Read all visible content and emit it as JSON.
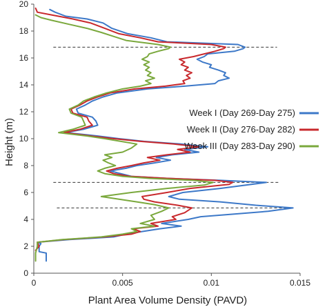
{
  "chart_data": {
    "type": "line",
    "orientation": "vertical-profile",
    "title": "",
    "xlabel": "Plant Area Volume Density (PAVD)",
    "ylabel": "Height (m)",
    "xlim": [
      0,
      0.015
    ],
    "ylim": [
      0,
      20
    ],
    "xticks": [
      0,
      0.005,
      0.01,
      0.015
    ],
    "xtick_labels": [
      "0",
      "0.005",
      "0.01",
      "0.015"
    ],
    "yticks": [
      0,
      2,
      4,
      6,
      8,
      10,
      12,
      14,
      16,
      18,
      20
    ],
    "ytick_labels": [
      "0",
      "2",
      "4",
      "6",
      "8",
      "10",
      "12",
      "14",
      "16",
      "18",
      "20"
    ],
    "grid": false,
    "legend_position": "right",
    "series": [
      {
        "name": "Week I (Day 269-Day 275)",
        "color": "#3c78c8",
        "points": [
          [
            0.0007,
            0.9
          ],
          [
            0.0007,
            1.5
          ],
          [
            0.0003,
            1.6
          ],
          [
            0.0003,
            2.0
          ],
          [
            0.0004,
            2.2
          ],
          [
            0.0002,
            2.3
          ],
          [
            0.002,
            2.5
          ],
          [
            0.0045,
            2.7
          ],
          [
            0.0052,
            2.9
          ],
          [
            0.0061,
            3.1
          ],
          [
            0.0071,
            3.3
          ],
          [
            0.0083,
            3.5
          ],
          [
            0.0072,
            3.7
          ],
          [
            0.0087,
            4.0
          ],
          [
            0.0094,
            4.2
          ],
          [
            0.0113,
            4.4
          ],
          [
            0.0132,
            4.6
          ],
          [
            0.0146,
            4.85
          ],
          [
            0.0125,
            5.05
          ],
          [
            0.0105,
            5.3
          ],
          [
            0.0082,
            5.5
          ],
          [
            0.0076,
            5.7
          ],
          [
            0.0084,
            6.0
          ],
          [
            0.0105,
            6.3
          ],
          [
            0.0131,
            6.75
          ],
          [
            0.0105,
            6.9
          ],
          [
            0.0075,
            7.05
          ],
          [
            0.0055,
            7.2
          ],
          [
            0.0049,
            7.4
          ],
          [
            0.0043,
            7.6
          ],
          [
            0.0052,
            7.8
          ],
          [
            0.0058,
            8.0
          ],
          [
            0.0068,
            8.2
          ],
          [
            0.0077,
            8.4
          ],
          [
            0.0069,
            8.6
          ],
          [
            0.0078,
            8.8
          ],
          [
            0.0093,
            9.0
          ],
          [
            0.0085,
            9.2
          ],
          [
            0.0098,
            9.4
          ],
          [
            0.0083,
            9.6
          ],
          [
            0.0062,
            9.8
          ],
          [
            0.0048,
            10.0
          ],
          [
            0.0036,
            10.2
          ],
          [
            0.0018,
            10.45
          ],
          [
            0.0028,
            10.7
          ],
          [
            0.0036,
            11.0
          ],
          [
            0.0035,
            11.3
          ],
          [
            0.0033,
            11.6
          ],
          [
            0.0025,
            11.9
          ],
          [
            0.0024,
            12.2
          ],
          [
            0.0029,
            12.5
          ],
          [
            0.0033,
            12.8
          ],
          [
            0.0039,
            13.1
          ],
          [
            0.0047,
            13.4
          ],
          [
            0.0064,
            13.7
          ],
          [
            0.0085,
            13.9
          ],
          [
            0.0102,
            14.1
          ],
          [
            0.0104,
            14.3
          ],
          [
            0.011,
            14.5
          ],
          [
            0.0107,
            14.7
          ],
          [
            0.0108,
            14.9
          ],
          [
            0.0104,
            15.1
          ],
          [
            0.0099,
            15.3
          ],
          [
            0.01,
            15.5
          ],
          [
            0.0095,
            15.7
          ],
          [
            0.0092,
            15.9
          ],
          [
            0.0096,
            16.1
          ],
          [
            0.0098,
            16.3
          ],
          [
            0.0113,
            16.5
          ],
          [
            0.0118,
            16.7
          ],
          [
            0.0119,
            16.8
          ],
          [
            0.0115,
            17.0
          ],
          [
            0.0075,
            17.2
          ],
          [
            0.0066,
            17.5
          ],
          [
            0.0053,
            17.8
          ],
          [
            0.0044,
            18.2
          ],
          [
            0.0039,
            18.6
          ],
          [
            0.003,
            18.9
          ],
          [
            0.0018,
            19.1
          ],
          [
            0.0012,
            19.4
          ],
          [
            0.0009,
            19.6
          ]
        ]
      },
      {
        "name": "Week II (Day 276-Day 282)",
        "color": "#c8282c",
        "points": [
          [
            0.0001,
            1.7
          ],
          [
            0.0003,
            2.0
          ],
          [
            0.0002,
            2.3
          ],
          [
            0.0017,
            2.5
          ],
          [
            0.004,
            2.7
          ],
          [
            0.0055,
            2.9
          ],
          [
            0.006,
            3.1
          ],
          [
            0.0056,
            3.3
          ],
          [
            0.007,
            3.5
          ],
          [
            0.0066,
            3.7
          ],
          [
            0.008,
            4.0
          ],
          [
            0.0078,
            4.2
          ],
          [
            0.0085,
            4.5
          ],
          [
            0.0089,
            4.85
          ],
          [
            0.0081,
            5.05
          ],
          [
            0.0068,
            5.3
          ],
          [
            0.0062,
            5.5
          ],
          [
            0.0061,
            5.7
          ],
          [
            0.0075,
            6.0
          ],
          [
            0.0088,
            6.3
          ],
          [
            0.011,
            6.6
          ],
          [
            0.0112,
            6.75
          ],
          [
            0.0102,
            6.9
          ],
          [
            0.0075,
            7.05
          ],
          [
            0.0054,
            7.2
          ],
          [
            0.0045,
            7.4
          ],
          [
            0.0041,
            7.6
          ],
          [
            0.0047,
            7.8
          ],
          [
            0.0055,
            8.0
          ],
          [
            0.0062,
            8.2
          ],
          [
            0.0071,
            8.4
          ],
          [
            0.0064,
            8.6
          ],
          [
            0.0075,
            8.8
          ],
          [
            0.0088,
            9.0
          ],
          [
            0.0081,
            9.2
          ],
          [
            0.0093,
            9.4
          ],
          [
            0.0079,
            9.6
          ],
          [
            0.006,
            9.8
          ],
          [
            0.0045,
            10.0
          ],
          [
            0.0032,
            10.2
          ],
          [
            0.0017,
            10.45
          ],
          [
            0.0026,
            10.7
          ],
          [
            0.0033,
            11.0
          ],
          [
            0.0031,
            11.3
          ],
          [
            0.003,
            11.6
          ],
          [
            0.0022,
            11.9
          ],
          [
            0.0021,
            12.2
          ],
          [
            0.0026,
            12.5
          ],
          [
            0.003,
            12.8
          ],
          [
            0.0036,
            13.1
          ],
          [
            0.0043,
            13.4
          ],
          [
            0.0057,
            13.7
          ],
          [
            0.0074,
            13.9
          ],
          [
            0.0085,
            14.1
          ],
          [
            0.0084,
            14.3
          ],
          [
            0.0088,
            14.5
          ],
          [
            0.0086,
            14.7
          ],
          [
            0.0089,
            14.9
          ],
          [
            0.0085,
            15.1
          ],
          [
            0.0087,
            15.3
          ],
          [
            0.0083,
            15.5
          ],
          [
            0.0085,
            15.7
          ],
          [
            0.0082,
            15.9
          ],
          [
            0.009,
            16.1
          ],
          [
            0.0096,
            16.3
          ],
          [
            0.0102,
            16.5
          ],
          [
            0.0107,
            16.7
          ],
          [
            0.0108,
            16.8
          ],
          [
            0.01,
            17.0
          ],
          [
            0.007,
            17.2
          ],
          [
            0.006,
            17.5
          ],
          [
            0.0048,
            17.8
          ],
          [
            0.004,
            18.2
          ],
          [
            0.0032,
            18.6
          ],
          [
            0.0022,
            18.9
          ],
          [
            0.001,
            19.2
          ],
          [
            0.0002,
            19.4
          ],
          [
            0.0001,
            19.7
          ]
        ]
      },
      {
        "name": "Week III (Day 283-Day 290)",
        "color": "#7aa83c",
        "points": [
          [
            0.0001,
            0.9
          ],
          [
            0.0001,
            1.5
          ],
          [
            0.0002,
            2.0
          ],
          [
            0.0002,
            2.3
          ],
          [
            0.0016,
            2.5
          ],
          [
            0.0038,
            2.7
          ],
          [
            0.005,
            2.9
          ],
          [
            0.0058,
            3.1
          ],
          [
            0.0055,
            3.3
          ],
          [
            0.0068,
            3.5
          ],
          [
            0.006,
            3.7
          ],
          [
            0.0068,
            4.0
          ],
          [
            0.0066,
            4.3
          ],
          [
            0.0072,
            4.6
          ],
          [
            0.0076,
            4.85
          ],
          [
            0.0068,
            5.1
          ],
          [
            0.0058,
            5.3
          ],
          [
            0.0048,
            5.5
          ],
          [
            0.0038,
            5.7
          ],
          [
            0.0055,
            6.0
          ],
          [
            0.0075,
            6.3
          ],
          [
            0.0096,
            6.55
          ],
          [
            0.0101,
            6.75
          ],
          [
            0.009,
            6.9
          ],
          [
            0.0065,
            7.05
          ],
          [
            0.005,
            7.2
          ],
          [
            0.004,
            7.4
          ],
          [
            0.0036,
            7.6
          ],
          [
            0.004,
            7.8
          ],
          [
            0.0046,
            8.0
          ],
          [
            0.0042,
            8.2
          ],
          [
            0.0039,
            8.4
          ],
          [
            0.0044,
            8.6
          ],
          [
            0.004,
            8.8
          ],
          [
            0.005,
            9.0
          ],
          [
            0.0055,
            9.3
          ],
          [
            0.0058,
            9.6
          ],
          [
            0.0049,
            9.8
          ],
          [
            0.004,
            10.0
          ],
          [
            0.003,
            10.2
          ],
          [
            0.0014,
            10.45
          ],
          [
            0.0022,
            10.7
          ],
          [
            0.0029,
            11.0
          ],
          [
            0.0028,
            11.3
          ],
          [
            0.0027,
            11.6
          ],
          [
            0.0021,
            11.9
          ],
          [
            0.002,
            12.2
          ],
          [
            0.0025,
            12.5
          ],
          [
            0.0028,
            12.8
          ],
          [
            0.0034,
            13.1
          ],
          [
            0.0041,
            13.4
          ],
          [
            0.005,
            13.7
          ],
          [
            0.006,
            13.9
          ],
          [
            0.0066,
            14.1
          ],
          [
            0.0063,
            14.3
          ],
          [
            0.0068,
            14.5
          ],
          [
            0.0064,
            14.7
          ],
          [
            0.0066,
            14.9
          ],
          [
            0.0063,
            15.1
          ],
          [
            0.0065,
            15.3
          ],
          [
            0.0062,
            15.5
          ],
          [
            0.0065,
            15.7
          ],
          [
            0.0061,
            15.9
          ],
          [
            0.0064,
            16.1
          ],
          [
            0.0065,
            16.3
          ],
          [
            0.007,
            16.5
          ],
          [
            0.0076,
            16.7
          ],
          [
            0.0077,
            16.8
          ],
          [
            0.007,
            17.0
          ],
          [
            0.0052,
            17.3
          ],
          [
            0.0045,
            17.6
          ],
          [
            0.0038,
            17.9
          ],
          [
            0.003,
            18.2
          ],
          [
            0.002,
            18.5
          ],
          [
            0.001,
            18.8
          ],
          [
            0.0004,
            19.0
          ],
          [
            0.0001,
            19.2
          ]
        ]
      }
    ],
    "reference_lines": [
      {
        "style": "dashed",
        "y": 16.8,
        "x_start": 0.0011,
        "x_end": 0.0137
      },
      {
        "style": "dashed",
        "y": 6.75,
        "x_start": 0.0011,
        "x_end": 0.0138
      },
      {
        "style": "dashed",
        "y": 4.85,
        "x_start": 0.0013,
        "x_end": 0.0145
      }
    ]
  }
}
